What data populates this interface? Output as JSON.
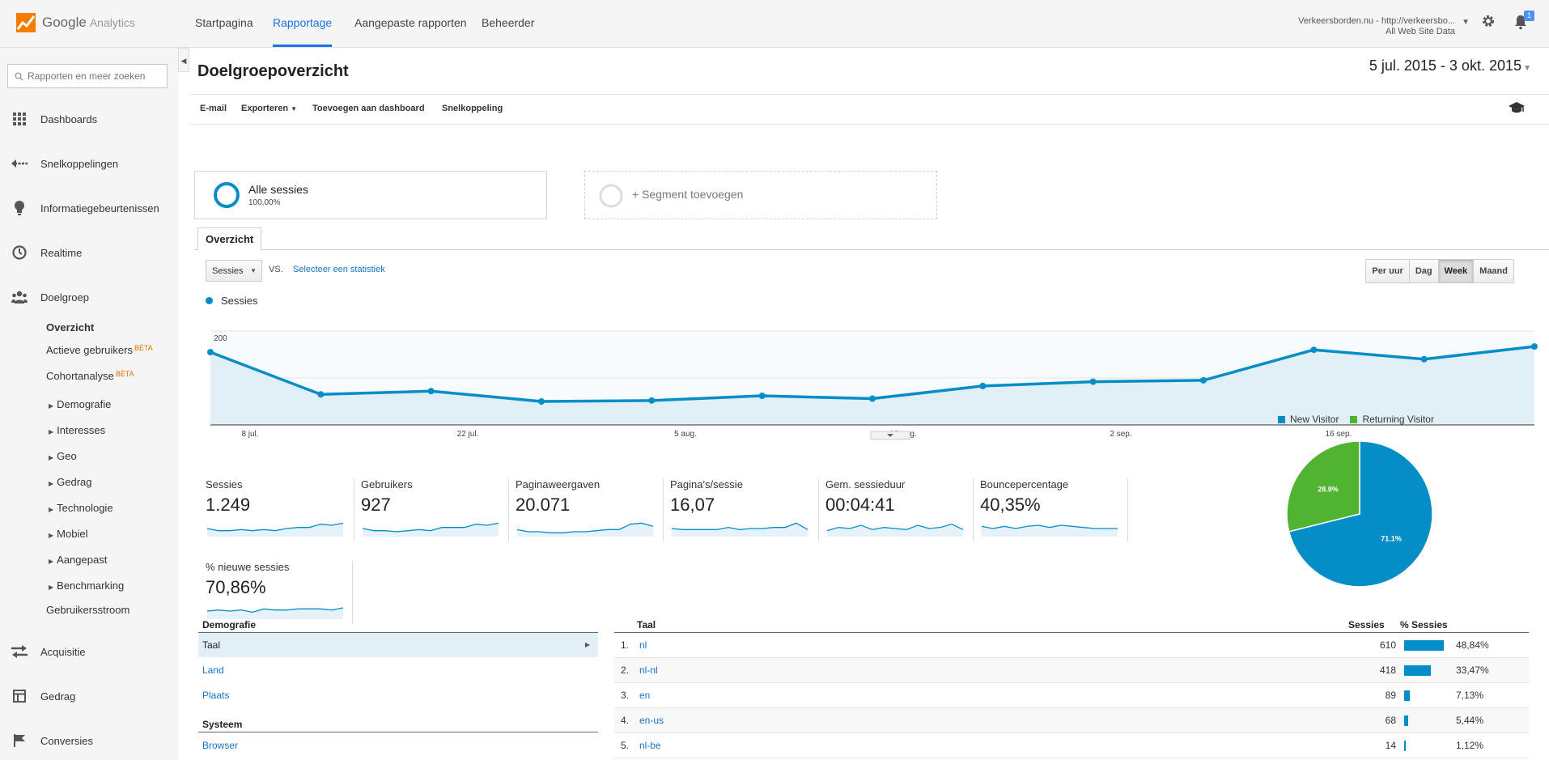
{
  "app": {
    "name": "Google",
    "product": "Analytics"
  },
  "nav": {
    "tabs": [
      {
        "label": "Startpagina"
      },
      {
        "label": "Rapportage"
      },
      {
        "label": "Aangepaste rapporten"
      },
      {
        "label": "Beheerder"
      }
    ]
  },
  "account": {
    "site": "Verkeersborden.nu - http://verkeersbo...",
    "view": "All Web Site Data",
    "notifications": "1"
  },
  "sidebar": {
    "search_placeholder": "Rapporten en meer zoeken",
    "items": [
      {
        "label": "Dashboards",
        "icon": "grid-icon"
      },
      {
        "label": "Snelkoppelingen",
        "icon": "shortcut-arrow-icon"
      },
      {
        "label": "Informatiegebeurtenissen",
        "icon": "lightbulb-icon"
      },
      {
        "label": "Realtime",
        "icon": "clock-icon"
      },
      {
        "label": "Doelgroep",
        "icon": "people-icon"
      }
    ],
    "doelgroep_sub": [
      {
        "label": "Overzicht"
      },
      {
        "label": "Actieve gebruikers",
        "badge": "BÈTA"
      },
      {
        "label": "Cohortanalyse",
        "badge": "BÈTA"
      },
      {
        "label": "Demografie"
      },
      {
        "label": "Interesses"
      },
      {
        "label": "Geo"
      },
      {
        "label": "Gedrag"
      },
      {
        "label": "Technologie"
      },
      {
        "label": "Mobiel"
      },
      {
        "label": "Aangepast"
      },
      {
        "label": "Benchmarking"
      },
      {
        "label": "Gebruikersstroom"
      }
    ],
    "bottom_items": [
      {
        "label": "Acquisitie",
        "icon": "acquisition-icon"
      },
      {
        "label": "Gedrag",
        "icon": "behavior-icon"
      },
      {
        "label": "Conversies",
        "icon": "flag-icon"
      }
    ]
  },
  "report": {
    "title": "Doelgroepoverzicht",
    "date_range": "5 jul. 2015 - 3 okt. 2015",
    "toolbar": {
      "email": "E-mail",
      "export": "Exporteren",
      "add_dashboard": "Toevoegen aan dashboard",
      "shortcut": "Snelkoppeling"
    },
    "segment": {
      "name": "Alle sessies",
      "pct": "100,00%",
      "add": "+ Segment toevoegen"
    },
    "tab": "Overzicht",
    "metric_select": "Sessies",
    "vs": "VS.",
    "select_stat": "Selecteer een statistiek",
    "granularity": [
      "Per uur",
      "Dag",
      "Week",
      "Maand"
    ],
    "granularity_selected": "Week"
  },
  "chart_data": {
    "type": "line",
    "series": [
      {
        "name": "Sessies",
        "values": [
          155,
          65,
          72,
          50,
          52,
          62,
          56,
          83,
          92,
          95,
          160,
          140,
          167
        ]
      }
    ],
    "x_ticks": [
      "8 jul.",
      "22 jul.",
      "5 aug.",
      "19 aug.",
      "2 sep.",
      "16 sep."
    ],
    "y_ticks": [
      100,
      200
    ],
    "ylim": [
      0,
      200
    ],
    "color": "#058dc7"
  },
  "metrics": [
    {
      "label": "Sessies",
      "value": "1.249",
      "spark": [
        6,
        4,
        4,
        5,
        4,
        5,
        4,
        6,
        7,
        7,
        10,
        9,
        11
      ]
    },
    {
      "label": "Gebruikers",
      "value": "927",
      "spark": [
        6,
        4,
        4,
        3,
        4,
        5,
        4,
        7,
        7,
        7,
        10,
        9,
        11
      ]
    },
    {
      "label": "Paginaweergaven",
      "value": "20.071",
      "spark": [
        5,
        3,
        3,
        2,
        2,
        3,
        3,
        4,
        5,
        5,
        10,
        11,
        8
      ]
    },
    {
      "label": "Pagina's/sessie",
      "value": "16,07",
      "spark": [
        6,
        5,
        5,
        5,
        5,
        7,
        5,
        6,
        6,
        7,
        7,
        11,
        5
      ]
    },
    {
      "label": "Gem. sessieduur",
      "value": "00:04:41",
      "spark": [
        4,
        7,
        6,
        9,
        5,
        7,
        6,
        5,
        9,
        6,
        7,
        10,
        5
      ]
    },
    {
      "label": "Bouncepercentage",
      "value": "40,35%",
      "spark": [
        8,
        6,
        8,
        6,
        8,
        9,
        7,
        9,
        8,
        7,
        6,
        6,
        6
      ]
    },
    {
      "label": "% nieuwe sessies",
      "value": "70,86%",
      "spark": [
        6,
        7,
        6,
        7,
        5,
        8,
        7,
        7,
        8,
        8,
        8,
        7,
        9
      ]
    }
  ],
  "pie": {
    "legend": [
      {
        "label": "New Visitor",
        "color": "#058dc7"
      },
      {
        "label": "Returning Visitor",
        "color": "#50b432"
      }
    ],
    "slices": [
      {
        "label": "71.1%",
        "value": 71.1
      },
      {
        "label": "28.9%",
        "value": 28.9
      }
    ]
  },
  "demografie": {
    "header1": "Demografie",
    "rows1": [
      {
        "label": "Taal"
      },
      {
        "label": "Land"
      },
      {
        "label": "Plaats"
      }
    ],
    "header2": "Systeem",
    "rows2": [
      {
        "label": "Browser"
      }
    ]
  },
  "taal_table": {
    "headers": {
      "name": "Taal",
      "sessions": "Sessies",
      "pct": "% Sessies"
    },
    "rows": [
      {
        "rank": "1.",
        "name": "nl",
        "sessions": "610",
        "pct": "48,84%",
        "frac": 0.4884
      },
      {
        "rank": "2.",
        "name": "nl-nl",
        "sessions": "418",
        "pct": "33,47%",
        "frac": 0.3347
      },
      {
        "rank": "3.",
        "name": "en",
        "sessions": "89",
        "pct": "7,13%",
        "frac": 0.0713
      },
      {
        "rank": "4.",
        "name": "en-us",
        "sessions": "68",
        "pct": "5,44%",
        "frac": 0.0544
      },
      {
        "rank": "5.",
        "name": "nl-be",
        "sessions": "14",
        "pct": "1,12%",
        "frac": 0.0112
      }
    ]
  }
}
